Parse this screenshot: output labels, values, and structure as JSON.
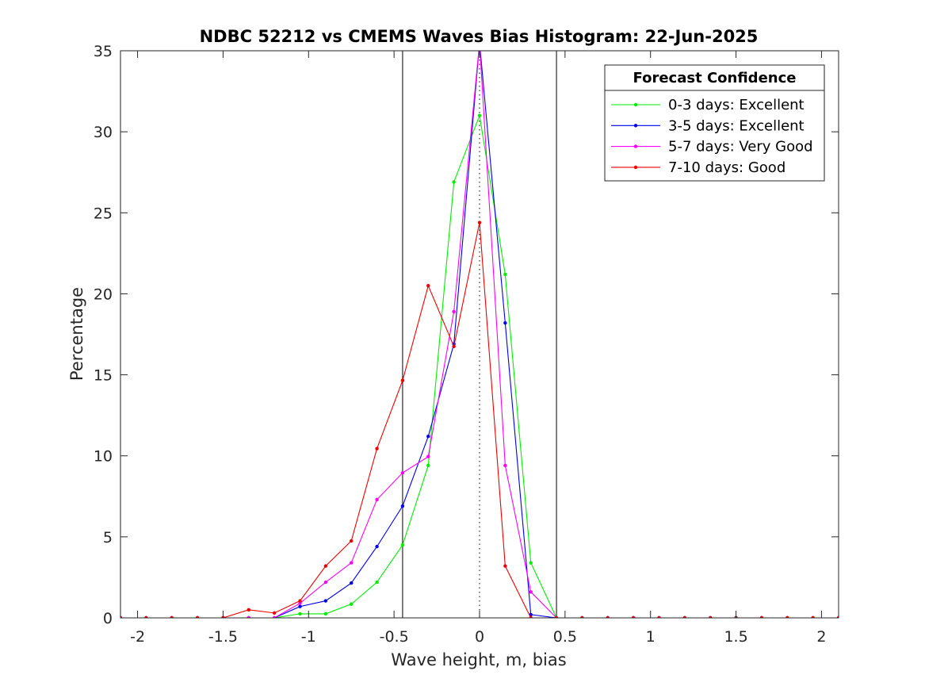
{
  "chart_data": {
    "type": "line",
    "title": "NDBC 52212 vs CMEMS Waves Bias Histogram: 22-Jun-2025",
    "xlabel": "Wave height, m, bias",
    "ylabel": "Percentage",
    "xlim": [
      -2.1,
      2.1
    ],
    "ylim": [
      0,
      35
    ],
    "x_ticks": [
      -2,
      -1.5,
      -1,
      -0.5,
      0,
      0.5,
      1,
      1.5,
      2
    ],
    "x_tick_labels": [
      "-2",
      "-1.5",
      "-1",
      "-0.5",
      "0",
      "0.5",
      "1",
      "1.5",
      "2"
    ],
    "y_ticks": [
      0,
      5,
      10,
      15,
      20,
      25,
      30,
      35
    ],
    "y_tick_labels": [
      "0",
      "5",
      "10",
      "15",
      "20",
      "25",
      "30",
      "35"
    ],
    "vertical_lines": [
      -0.45,
      0.45
    ],
    "zero_line_style": "dotted",
    "grid": false,
    "legend": {
      "title": "Forecast Confidence",
      "position": "top-right"
    },
    "x": [
      -2.1,
      -1.95,
      -1.8,
      -1.65,
      -1.5,
      -1.35,
      -1.2,
      -1.05,
      -0.9,
      -0.75,
      -0.6,
      -0.45,
      -0.3,
      -0.15,
      0,
      0.15,
      0.3,
      0.45,
      0.6,
      0.75,
      0.9,
      1.05,
      1.2,
      1.35,
      1.5,
      1.65,
      1.8,
      1.95,
      2.1
    ],
    "series": [
      {
        "name": "0-3 days: Excellent",
        "color": "#00ee00",
        "values": [
          0,
          0,
          0,
          0,
          0,
          0,
          0,
          0.25,
          0.25,
          0.85,
          2.2,
          4.5,
          9.4,
          26.9,
          31.0,
          21.2,
          3.4,
          0,
          0,
          0,
          0,
          0,
          0,
          0,
          0,
          0,
          0,
          0,
          0
        ]
      },
      {
        "name": "3-5 days: Excellent",
        "color": "#0000ee",
        "values": [
          0,
          0,
          0,
          0,
          0,
          0,
          0,
          0.7,
          1.05,
          2.15,
          4.4,
          6.9,
          11.2,
          16.9,
          35.5,
          18.2,
          0.2,
          0,
          0,
          0,
          0,
          0,
          0,
          0,
          0,
          0,
          0,
          0,
          0
        ]
      },
      {
        "name": "5-7 days: Very Good",
        "color": "#ff00ff",
        "values": [
          0,
          0,
          0,
          0,
          0,
          0,
          0,
          0.9,
          2.2,
          3.4,
          7.3,
          8.95,
          9.95,
          18.9,
          35.5,
          9.4,
          1.6,
          0,
          0,
          0,
          0,
          0,
          0,
          0,
          0,
          0,
          0,
          0,
          0
        ]
      },
      {
        "name": "7-10 days: Good",
        "color": "#ee0000",
        "values": [
          0,
          0,
          0,
          0,
          0,
          0.5,
          0.3,
          1.05,
          3.2,
          4.75,
          10.45,
          14.65,
          20.5,
          16.75,
          24.4,
          3.2,
          0,
          0,
          0,
          0,
          0,
          0,
          0,
          0,
          0,
          0,
          0,
          0,
          0
        ]
      }
    ]
  }
}
